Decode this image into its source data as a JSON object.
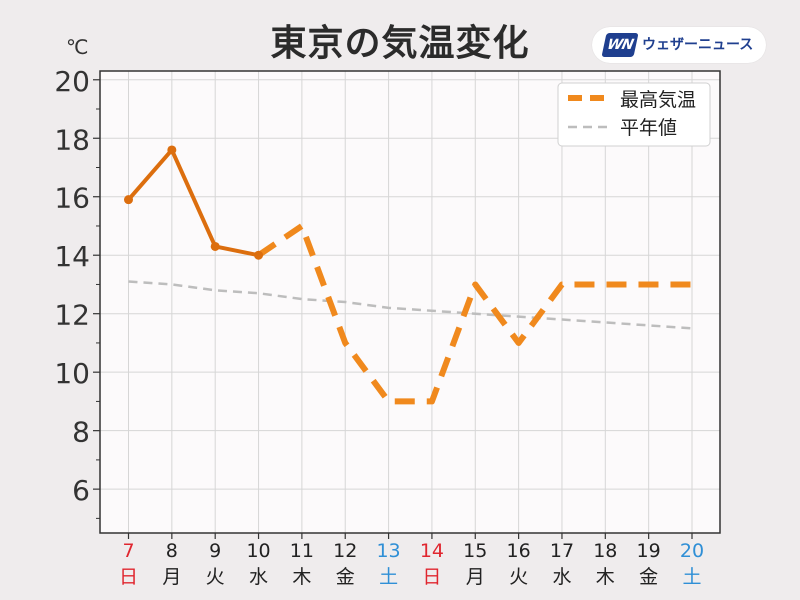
{
  "header": {
    "title": "東京の気温変化",
    "logo_text": "ウェザーニュース",
    "logo_mark": "WN"
  },
  "chart_data": {
    "type": "line",
    "title": "東京の気温変化",
    "ylabel": "℃",
    "xlabel": "",
    "ylim": [
      4.5,
      20.3
    ],
    "yticks": [
      6,
      8,
      10,
      12,
      14,
      16,
      18,
      20
    ],
    "grid": true,
    "legend_position": "top-right",
    "categories": [
      {
        "day": "7",
        "weekday": "日",
        "color": "#e0262f"
      },
      {
        "day": "8",
        "weekday": "月",
        "color": "#222222"
      },
      {
        "day": "9",
        "weekday": "火",
        "color": "#222222"
      },
      {
        "day": "10",
        "weekday": "水",
        "color": "#222222"
      },
      {
        "day": "11",
        "weekday": "木",
        "color": "#222222"
      },
      {
        "day": "12",
        "weekday": "金",
        "color": "#222222"
      },
      {
        "day": "13",
        "weekday": "土",
        "color": "#2f8fd6"
      },
      {
        "day": "14",
        "weekday": "日",
        "color": "#e0262f"
      },
      {
        "day": "15",
        "weekday": "月",
        "color": "#222222"
      },
      {
        "day": "16",
        "weekday": "火",
        "color": "#222222"
      },
      {
        "day": "17",
        "weekday": "水",
        "color": "#222222"
      },
      {
        "day": "18",
        "weekday": "木",
        "color": "#222222"
      },
      {
        "day": "19",
        "weekday": "金",
        "color": "#222222"
      },
      {
        "day": "20",
        "weekday": "土",
        "color": "#2f8fd6"
      }
    ],
    "series": [
      {
        "name": "最高気温",
        "color": "#f0891d",
        "observed_color": "#dc6e0e",
        "observed_count": 4,
        "values": [
          15.9,
          17.6,
          14.3,
          14.0,
          15.0,
          11.0,
          9.0,
          9.0,
          13.0,
          11.0,
          13.0,
          13.0,
          13.0,
          13.0
        ]
      },
      {
        "name": "平年値",
        "color": "#bdbdbd",
        "values": [
          13.1,
          13.0,
          12.8,
          12.7,
          12.5,
          12.4,
          12.2,
          12.1,
          12.0,
          11.9,
          11.8,
          11.7,
          11.6,
          11.5
        ]
      }
    ]
  }
}
